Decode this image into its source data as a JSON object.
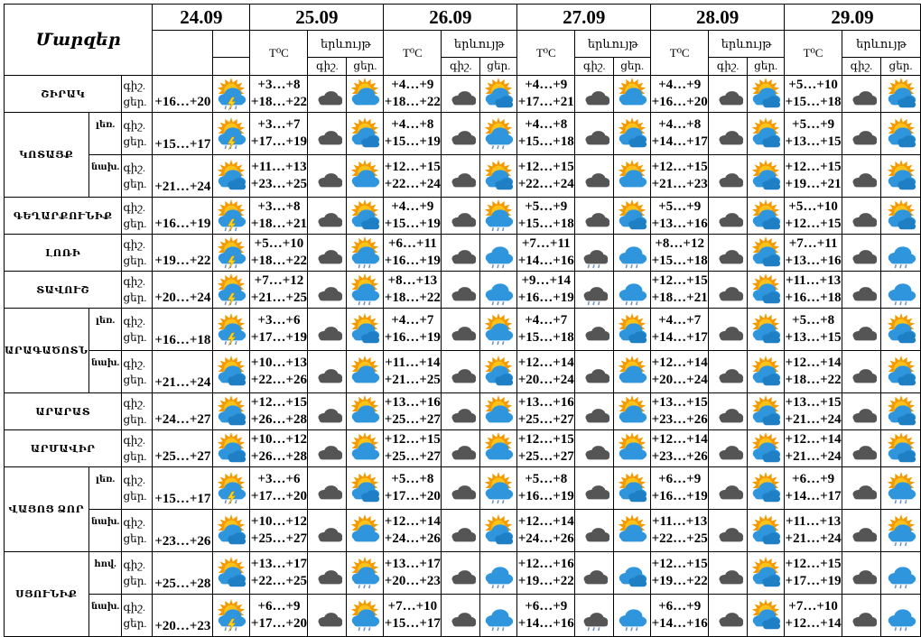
{
  "header": {
    "regions_title": "Մարզեր",
    "dates": [
      "24.09",
      "25.09",
      "26.09",
      "27.09",
      "28.09",
      "29.09"
    ],
    "temp_label": "T⁰C",
    "phenomenon_label": "երևույթ",
    "night_label": "գիշ.",
    "day_label": "ցեր."
  },
  "row_labels": {
    "night": "գիշ.",
    "day": "ցեր."
  },
  "regions": [
    {
      "name": "ՇԻՐԱԿ",
      "rows": [
        {
          "sub": "",
          "d0": {
            "day": "+16…+20",
            "icon": "thunderstorm"
          },
          "days": [
            {
              "night": "+3…+8",
              "day": "+18…+22",
              "ni": "moon-cloud",
              "di": "sun-cloud"
            },
            {
              "night": "+4…+9",
              "day": "+18…+22",
              "ni": "moon-cloud",
              "di": "sun-clouds"
            },
            {
              "night": "+4…+9",
              "day": "+17…+21",
              "ni": "moon-cloud",
              "di": "sun-cloud"
            },
            {
              "night": "+4…+9",
              "day": "+16…+20",
              "ni": "moon-clouds",
              "di": "sun-clouds"
            },
            {
              "night": "+5…+10",
              "day": "+15…+18",
              "ni": "moon-clouds",
              "di": "sun-clouds"
            }
          ]
        }
      ]
    },
    {
      "name": "ԿՈՏԱՅՔ",
      "rows": [
        {
          "sub": "լեռ.",
          "d0": {
            "day": "+15…+17",
            "icon": "thunderstorm"
          },
          "days": [
            {
              "night": "+3…+7",
              "day": "+17…+19",
              "ni": "moon-cloud",
              "di": "sun-clouds"
            },
            {
              "night": "+4…+8",
              "day": "+15…+19",
              "ni": "moon-cloud",
              "di": "sun-rain"
            },
            {
              "night": "+4…+8",
              "day": "+15…+18",
              "ni": "moon-cloud",
              "di": "sun-clouds"
            },
            {
              "night": "+4…+8",
              "day": "+14…+17",
              "ni": "moon-clouds",
              "di": "sun-clouds"
            },
            {
              "night": "+5…+9",
              "day": "+13…+15",
              "ni": "moon-clouds",
              "di": "sun-clouds"
            }
          ]
        },
        {
          "sub": "նախ.",
          "d0": {
            "day": "+21…+24",
            "icon": "sun-clouds"
          },
          "days": [
            {
              "night": "+11…+13",
              "day": "+23…+25",
              "ni": "moon-cloud",
              "di": "sun-cloud"
            },
            {
              "night": "+12…+15",
              "day": "+22…+24",
              "ni": "moon-cloud",
              "di": "sun-clouds"
            },
            {
              "night": "+12…+15",
              "day": "+22…+24",
              "ni": "moon-cloud",
              "di": "sun-cloud"
            },
            {
              "night": "+12…+15",
              "day": "+21…+23",
              "ni": "moon-cloud",
              "di": "sun-clouds"
            },
            {
              "night": "+12…+15",
              "day": "+19…+21",
              "ni": "moon-cloud",
              "di": "sun-clouds"
            }
          ]
        }
      ]
    },
    {
      "name": "ԳԵՂԱՐՔՈՒՆԻՔ",
      "rows": [
        {
          "sub": "",
          "d0": {
            "day": "+16…+19",
            "icon": "thunderstorm"
          },
          "days": [
            {
              "night": "+3…+8",
              "day": "+18…+21",
              "ni": "moon-cloud",
              "di": "sun-clouds"
            },
            {
              "night": "+4…+9",
              "day": "+15…+19",
              "ni": "moon-cloud",
              "di": "sun-rain"
            },
            {
              "night": "+5…+9",
              "day": "+15…+18",
              "ni": "moon-clouds",
              "di": "sun-clouds"
            },
            {
              "night": "+5…+9",
              "day": "+13…+16",
              "ni": "moon-clouds",
              "di": "sun-clouds"
            },
            {
              "night": "+5…+10",
              "day": "+12…+15",
              "ni": "moon-clouds",
              "di": "sun-clouds"
            }
          ]
        }
      ]
    },
    {
      "name": "ԼՈՌԻ",
      "rows": [
        {
          "sub": "",
          "d0": {
            "day": "+19…+22",
            "icon": "thunderstorm"
          },
          "days": [
            {
              "night": "+5…+10",
              "day": "+18…+22",
              "ni": "moon-cloud",
              "di": "sun-rain"
            },
            {
              "night": "+6…+11",
              "day": "+16…+19",
              "ni": "moon-cloud",
              "di": "rain"
            },
            {
              "night": "+7…+11",
              "day": "+14…+16",
              "ni": "dark-rain",
              "di": "rain"
            },
            {
              "night": "+8…+12",
              "day": "+15…+18",
              "ni": "moon-clouds",
              "di": "sun-clouds"
            },
            {
              "night": "+7…+11",
              "day": "+13…+16",
              "ni": "moon-clouds",
              "di": "rain"
            }
          ]
        }
      ]
    },
    {
      "name": "ՏԱՎՈՒՇ",
      "rows": [
        {
          "sub": "",
          "d0": {
            "day": "+20…+24",
            "icon": "thunderstorm"
          },
          "days": [
            {
              "night": "+7…+12",
              "day": "+21…+25",
              "ni": "moon-cloud",
              "di": "sun-rain"
            },
            {
              "night": "+8…+13",
              "day": "+18…+22",
              "ni": "moon-cloud",
              "di": "rain"
            },
            {
              "night": "+9…+14",
              "day": "+16…+19",
              "ni": "dark-rain",
              "di": "rain"
            },
            {
              "night": "+12…+15",
              "day": "+18…+21",
              "ni": "moon-clouds",
              "di": "sun-clouds"
            },
            {
              "night": "+11…+13",
              "day": "+16…+18",
              "ni": "moon-clouds",
              "di": "rain"
            }
          ]
        }
      ]
    },
    {
      "name": "ԱՐԱԳԱԾՈՏՆ",
      "rows": [
        {
          "sub": "լեռ.",
          "d0": {
            "day": "+16…+18",
            "icon": "thunderstorm"
          },
          "days": [
            {
              "night": "+3…+6",
              "day": "+17…+19",
              "ni": "moon-cloud",
              "di": "sun-clouds"
            },
            {
              "night": "+4…+7",
              "day": "+16…+19",
              "ni": "moon-cloud",
              "di": "sun-rain"
            },
            {
              "night": "+4…+7",
              "day": "+15…+18",
              "ni": "moon-cloud",
              "di": "sun-clouds"
            },
            {
              "night": "+4…+7",
              "day": "+14…+17",
              "ni": "moon-clouds",
              "di": "sun-clouds"
            },
            {
              "night": "+5…+8",
              "day": "+13…+15",
              "ni": "moon-clouds",
              "di": "sun-clouds"
            }
          ]
        },
        {
          "sub": "նախ.",
          "d0": {
            "day": "+21…+24",
            "icon": "sun-clouds"
          },
          "days": [
            {
              "night": "+10…+13",
              "day": "+22…+26",
              "ni": "moon-cloud",
              "di": "sun-cloud"
            },
            {
              "night": "+11…+14",
              "day": "+21…+25",
              "ni": "moon-cloud",
              "di": "sun-clouds"
            },
            {
              "night": "+12…+14",
              "day": "+20…+24",
              "ni": "moon-cloud",
              "di": "sun-cloud"
            },
            {
              "night": "+12…+14",
              "day": "+20…+24",
              "ni": "moon-cloud",
              "di": "sun-clouds"
            },
            {
              "night": "+12…+14",
              "day": "+18…+22",
              "ni": "moon-cloud",
              "di": "sun-clouds"
            }
          ]
        }
      ]
    },
    {
      "name": "ԱՐԱՐԱՏ",
      "rows": [
        {
          "sub": "",
          "d0": {
            "day": "+24…+27",
            "icon": "sun-clouds"
          },
          "days": [
            {
              "night": "+12…+15",
              "day": "+26…+28",
              "ni": "moon-cloud",
              "di": "sun-cloud"
            },
            {
              "night": "+13…+16",
              "day": "+25…+27",
              "ni": "moon-cloud",
              "di": "sun-cloud"
            },
            {
              "night": "+13…+16",
              "day": "+25…+27",
              "ni": "moon-cloud",
              "di": "sun-cloud"
            },
            {
              "night": "+13…+15",
              "day": "+23…+26",
              "ni": "moon-cloud",
              "di": "sun-clouds"
            },
            {
              "night": "+13…+15",
              "day": "+21…+24",
              "ni": "moon-cloud",
              "di": "sun-clouds"
            }
          ]
        }
      ]
    },
    {
      "name": "ԱՐՄԱՎԻՐ",
      "rows": [
        {
          "sub": "",
          "d0": {
            "day": "+25…+27",
            "icon": "sun-clouds"
          },
          "days": [
            {
              "night": "+10…+12",
              "day": "+26…+28",
              "ni": "moon-cloud",
              "di": "sun-cloud"
            },
            {
              "night": "+12…+15",
              "day": "+25…+27",
              "ni": "moon-cloud",
              "di": "sun-cloud"
            },
            {
              "night": "+12…+15",
              "day": "+25…+27",
              "ni": "moon-cloud",
              "di": "sun-cloud"
            },
            {
              "night": "+12…+14",
              "day": "+23…+26",
              "ni": "moon-cloud",
              "di": "sun-clouds"
            },
            {
              "night": "+12…+14",
              "day": "+21…+24",
              "ni": "moon-cloud",
              "di": "sun-clouds"
            }
          ]
        }
      ]
    },
    {
      "name": "ՎԱՅՈՑ ՁՈՐ",
      "rows": [
        {
          "sub": "լեռ.",
          "d0": {
            "day": "+15…+17",
            "icon": "thunderstorm"
          },
          "days": [
            {
              "night": "+3…+6",
              "day": "+17…+20",
              "ni": "moon-cloud",
              "di": "sun-clouds"
            },
            {
              "night": "+5…+8",
              "day": "+17…+20",
              "ni": "moon-cloud",
              "di": "sun-rain"
            },
            {
              "night": "+5…+8",
              "day": "+16…+19",
              "ni": "moon-cloud",
              "di": "sun-clouds"
            },
            {
              "night": "+6…+9",
              "day": "+16…+19",
              "ni": "moon-clouds",
              "di": "sun-clouds"
            },
            {
              "night": "+6…+9",
              "day": "+14…+17",
              "ni": "moon-clouds",
              "di": "sun-rain"
            }
          ]
        },
        {
          "sub": "նախ.",
          "d0": {
            "day": "+23…+26",
            "icon": "sun-clouds"
          },
          "days": [
            {
              "night": "+10…+12",
              "day": "+25…+27",
              "ni": "moon-cloud",
              "di": "sun-cloud"
            },
            {
              "night": "+12…+14",
              "day": "+24…+26",
              "ni": "moon-cloud",
              "di": "sun-clouds"
            },
            {
              "night": "+12…+14",
              "day": "+24…+26",
              "ni": "moon-cloud",
              "di": "sun-cloud"
            },
            {
              "night": "+11…+13",
              "day": "+22…+25",
              "ni": "moon-cloud",
              "di": "sun-clouds"
            },
            {
              "night": "+11…+13",
              "day": "+21…+24",
              "ni": "moon-cloud",
              "di": "sun-rain"
            }
          ]
        }
      ]
    },
    {
      "name": "ՍՅՈՒՆԻՔ",
      "rows": [
        {
          "sub": "հով.",
          "d0": {
            "day": "+25…+28",
            "icon": "sun-clouds"
          },
          "days": [
            {
              "night": "+13…+17",
              "day": "+22…+25",
              "ni": "moon-cloud",
              "di": "sun-rain"
            },
            {
              "night": "+13…+17",
              "day": "+20…+23",
              "ni": "moon-cloud",
              "di": "rain"
            },
            {
              "night": "+12…+16",
              "day": "+19…+22",
              "ni": "dark-clouds",
              "di": "blue-clouds"
            },
            {
              "night": "+12…+15",
              "day": "+19…+22",
              "ni": "moon-clouds",
              "di": "sun-clouds"
            },
            {
              "night": "+12…+15",
              "day": "+17…+19",
              "ni": "moon-clouds",
              "di": "rain"
            }
          ]
        },
        {
          "sub": "նախ.",
          "d0": {
            "day": "+20…+23",
            "icon": "thunderstorm"
          },
          "days": [
            {
              "night": "+6…+9",
              "day": "+17…+20",
              "ni": "moon-cloud",
              "di": "sun-rain"
            },
            {
              "night": "+7…+10",
              "day": "+15…+17",
              "ni": "moon-cloud",
              "di": "rain"
            },
            {
              "night": "+6…+9",
              "day": "+14…+16",
              "ni": "dark-rain",
              "di": "rain"
            },
            {
              "night": "+6…+9",
              "day": "+14…+16",
              "ni": "moon-clouds",
              "di": "sun-clouds"
            },
            {
              "night": "+7…+10",
              "day": "+12…+14",
              "ni": "moon-clouds",
              "di": "rain"
            }
          ]
        }
      ]
    }
  ],
  "colors": {
    "sun": "#ffc21a",
    "sun_rays": "#f39a00",
    "moon": "#f5a623",
    "blue_cloud": "#2f95dc",
    "dark_cloud": "#555555",
    "rain": "#6b8fbf",
    "lightning": "#ffd21a"
  }
}
